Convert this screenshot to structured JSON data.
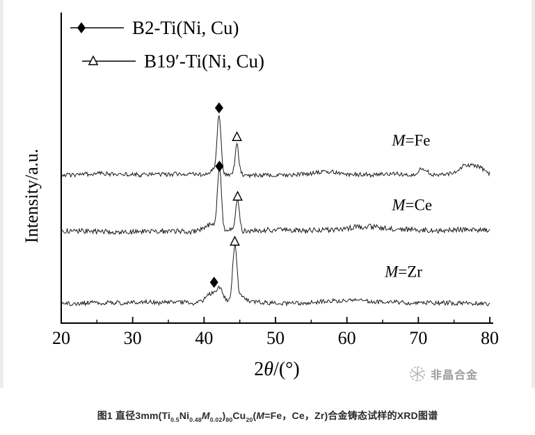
{
  "page": {
    "background": "#ffffff"
  },
  "chart_data": {
    "type": "line",
    "title": "",
    "xlabel": "2θ/(°)",
    "ylabel": "Intensity/a.u.",
    "xlim": [
      20,
      80
    ],
    "ylim": [
      0,
      1
    ],
    "x_ticks": [
      20,
      30,
      40,
      50,
      60,
      70,
      80
    ],
    "grid": false,
    "legend_position": "top-left",
    "line_color": "#1a1a1a",
    "legend": [
      {
        "marker": "filled-diamond",
        "label": "B2-Ti(Ni, Cu)"
      },
      {
        "marker": "open-triangle",
        "label": "B19′-Ti(Ni, Cu)"
      }
    ],
    "series": [
      {
        "label": "M=Fe",
        "seed": 3,
        "offset": 0.61,
        "noise": 0.009,
        "label_x": 66.3,
        "label_y": 0.73,
        "peaks": [
          {
            "center": 42.1,
            "height": 0.245,
            "width": 0.28
          },
          {
            "center": 44.6,
            "height": 0.125,
            "width": 0.26
          },
          {
            "center": 41.3,
            "height": 0.02,
            "width": 0.5
          },
          {
            "center": 57.0,
            "height": 0.012,
            "width": 1.5
          },
          {
            "center": 70.6,
            "height": 0.028,
            "width": 0.55
          },
          {
            "center": 76.8,
            "height": 0.04,
            "width": 1.1
          },
          {
            "center": 78.6,
            "height": 0.02,
            "width": 0.6
          }
        ],
        "markers": [
          {
            "type": "filled-diamond",
            "x": 42.1,
            "y": 0.885
          },
          {
            "type": "open-triangle",
            "x": 44.6,
            "y": 0.765
          }
        ]
      },
      {
        "label": "M=Ce",
        "seed": 8,
        "offset": 0.38,
        "noise": 0.011,
        "label_x": 66.3,
        "label_y": 0.465,
        "peaks": [
          {
            "center": 42.15,
            "height": 0.26,
            "width": 0.26
          },
          {
            "center": 44.7,
            "height": 0.13,
            "width": 0.26
          },
          {
            "center": 41.2,
            "height": 0.03,
            "width": 0.8
          },
          {
            "center": 63.0,
            "height": 0.01,
            "width": 2.0
          }
        ],
        "markers": [
          {
            "type": "filled-diamond",
            "x": 42.15,
            "y": 0.645
          },
          {
            "type": "open-triangle",
            "x": 44.7,
            "y": 0.52
          }
        ]
      },
      {
        "label": "M=Zr",
        "seed": 15,
        "offset": 0.083,
        "noise": 0.009,
        "label_x": 65.3,
        "label_y": 0.19,
        "peaks": [
          {
            "center": 41.4,
            "height": 0.045,
            "width": 0.9
          },
          {
            "center": 42.3,
            "height": 0.03,
            "width": 0.35
          },
          {
            "center": 44.3,
            "height": 0.235,
            "width": 0.3
          },
          {
            "center": 45.4,
            "height": 0.02,
            "width": 0.5
          },
          {
            "center": 60.0,
            "height": 0.012,
            "width": 4.0
          }
        ],
        "markers": [
          {
            "type": "filled-diamond",
            "x": 41.4,
            "y": 0.168
          },
          {
            "type": "open-triangle",
            "x": 44.3,
            "y": 0.335
          }
        ]
      }
    ]
  },
  "caption": {
    "segments": [
      {
        "t": "图1 直径3mm(Ti"
      },
      {
        "t": "0.5",
        "sub": true
      },
      {
        "t": "Ni"
      },
      {
        "t": "0.48",
        "sub": true
      },
      {
        "t": "M",
        "i": true
      },
      {
        "t": "0.02",
        "sub": true
      },
      {
        "t": ")"
      },
      {
        "t": "80",
        "sub": true
      },
      {
        "t": "Cu"
      },
      {
        "t": "20",
        "sub": true
      },
      {
        "t": "("
      },
      {
        "t": "M",
        "i": true
      },
      {
        "t": "=Fe，Ce，Zr)合金铸态试样的XRD图谱"
      }
    ]
  },
  "watermark": {
    "text": "非晶合金"
  }
}
